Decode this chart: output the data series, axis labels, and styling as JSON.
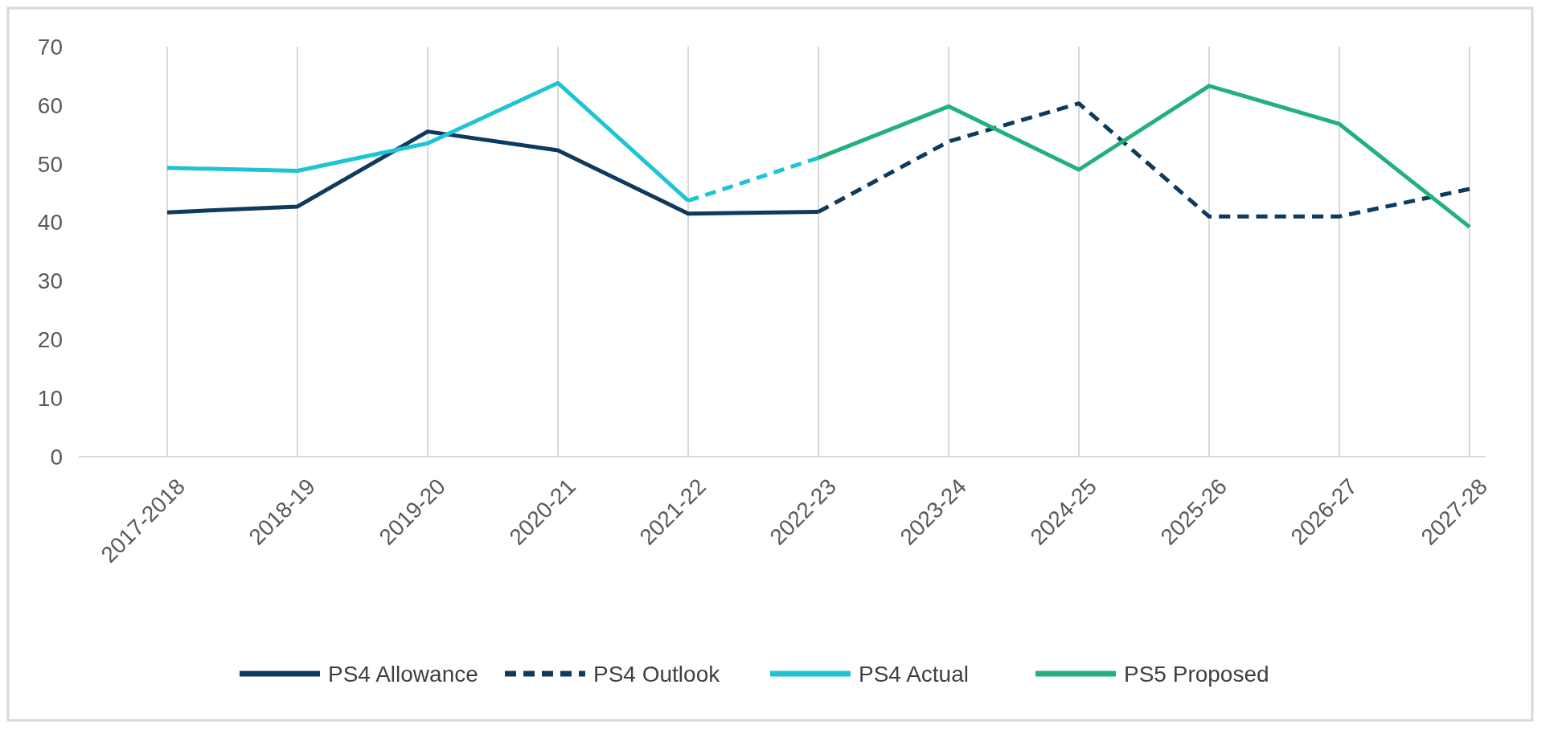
{
  "chart_data": {
    "type": "line",
    "categories": [
      "2017-2018",
      "2018-19",
      "2019-20",
      "2020-21",
      "2021-22",
      "2022-23",
      "2023-24",
      "2024-25",
      "2025-26",
      "2026-27",
      "2027-28"
    ],
    "series": [
      {
        "name": "PS4 Allowance",
        "color": "#0e3a5e",
        "line_style": "solid",
        "values": [
          41.7,
          42.7,
          55.5,
          52.3,
          41.5,
          41.8,
          null,
          null,
          null,
          null,
          null
        ]
      },
      {
        "name": "PS4 Outlook",
        "color": "#0e3a5e",
        "line_style": "dashed",
        "values": [
          null,
          null,
          null,
          null,
          null,
          41.8,
          53.8,
          60.3,
          41,
          41,
          45.7
        ]
      },
      {
        "name": "PS4 Actual",
        "color": "#1ec4d4",
        "line_style": "solid",
        "values": [
          49.3,
          48.8,
          53.5,
          63.8,
          43.7,
          null,
          null,
          null,
          null,
          null,
          null
        ]
      },
      {
        "color": "#1ec4d4",
        "line_style": "dashed",
        "values": [
          null,
          null,
          null,
          null,
          43.7,
          51,
          null,
          null,
          null,
          null,
          null
        ]
      },
      {
        "name": "PS5 Proposed",
        "color": "#22b07d",
        "line_style": "solid",
        "values": [
          null,
          null,
          null,
          null,
          null,
          51,
          59.8,
          49,
          63.3,
          56.8,
          39.2
        ]
      }
    ],
    "ylim": [
      0,
      70
    ],
    "yticks": [
      0,
      10,
      20,
      30,
      40,
      50,
      60,
      70
    ],
    "grid": "x",
    "legend": "bottom"
  }
}
